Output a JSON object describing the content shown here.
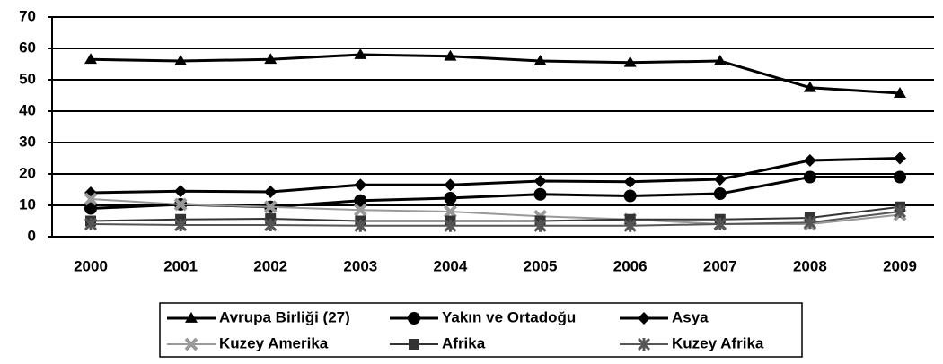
{
  "chart_data": {
    "type": "line",
    "categories": [
      "2000",
      "2001",
      "2002",
      "2003",
      "2004",
      "2005",
      "2006",
      "2007",
      "2008",
      "2009"
    ],
    "series": [
      {
        "name": "Avrupa Birliği (27)",
        "color": "#000000",
        "marker": "triangle",
        "values": [
          56.5,
          56,
          56.5,
          58,
          57.5,
          56,
          55.5,
          56,
          47.5,
          45.7
        ]
      },
      {
        "name": "Yakın ve Ortadoğu",
        "color": "#000000",
        "marker": "circle",
        "values": [
          9,
          10.3,
          9.5,
          11.5,
          12.3,
          13.5,
          13,
          13.7,
          19,
          19
        ]
      },
      {
        "name": "Asya",
        "color": "#000000",
        "marker": "diamond",
        "values": [
          14,
          14.5,
          14.3,
          16.5,
          16.5,
          17.7,
          17.5,
          18.3,
          24.3,
          25
        ]
      },
      {
        "name": "Kuzey Amerika",
        "color": "#999999",
        "marker": "cross",
        "values": [
          12,
          10.3,
          9.5,
          8.5,
          8,
          6.5,
          5.5,
          4,
          4,
          7
        ]
      },
      {
        "name": "Afrika",
        "color": "#333333",
        "marker": "square",
        "values": [
          5,
          5.5,
          5.7,
          5,
          5,
          5,
          5.5,
          5.5,
          6,
          9.5
        ]
      },
      {
        "name": "Kuzey Afrika",
        "color": "#555555",
        "marker": "star",
        "values": [
          4,
          3.7,
          3.7,
          3.5,
          3.5,
          3.5,
          3.5,
          4,
          4.5,
          8
        ]
      }
    ],
    "ylim": [
      0,
      70
    ],
    "yticks": [
      0,
      10,
      20,
      30,
      40,
      50,
      60,
      70
    ],
    "grid": true,
    "legend": "bottom"
  }
}
